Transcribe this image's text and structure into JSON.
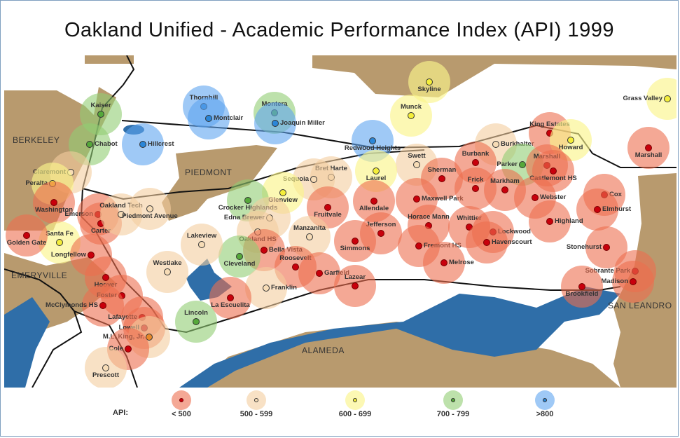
{
  "title": "Oakland Unified - Academic Performance Index  (API) 1999",
  "cities": [
    "BERKELEY",
    "PIEDMONT",
    "EMERYVILLE",
    "SAN LEANDRO",
    "ALAMEDA"
  ],
  "legend": {
    "label": "API:",
    "categories": [
      {
        "label": "< 500",
        "color": "#ec6e4e"
      },
      {
        "label": "500 - 599",
        "color": "#f4cd9e"
      },
      {
        "label": "600 - 699",
        "color": "#faf48c"
      },
      {
        "label": "700 - 799",
        "color": "#91cd73"
      },
      {
        "label": ">800",
        "color": "#5fa5f0"
      }
    ]
  },
  "schools": [
    {
      "name": "Kaiser",
      "api_category": "700 - 799"
    },
    {
      "name": "Chabot",
      "api_category": "700 - 799"
    },
    {
      "name": "Hillcrest",
      "api_category": ">800"
    },
    {
      "name": "Thornhill",
      "api_category": ">800"
    },
    {
      "name": "Montclair",
      "api_category": ">800"
    },
    {
      "name": "Montera",
      "api_category": "700 - 799"
    },
    {
      "name": "Joaquin Miller",
      "api_category": ">800"
    },
    {
      "name": "Skyline",
      "api_category": "600 - 699"
    },
    {
      "name": "Munck",
      "api_category": "600 - 699"
    },
    {
      "name": "Grass Valley",
      "api_category": "600 - 699"
    },
    {
      "name": "Redwood Heights",
      "api_category": ">800"
    },
    {
      "name": "Burkhalter",
      "api_category": "500 - 599"
    },
    {
      "name": "King Estates",
      "api_category": "< 500"
    },
    {
      "name": "Howard",
      "api_category": "600 - 699"
    },
    {
      "name": "Marshall",
      "api_category": "< 500"
    },
    {
      "name": "Parker",
      "api_category": "700 - 799"
    },
    {
      "name": "Marshall",
      "api_category": "< 500"
    },
    {
      "name": "Castlemont HS",
      "api_category": "< 500"
    },
    {
      "name": "Burbank",
      "api_category": "< 500"
    },
    {
      "name": "Swett",
      "api_category": "500 - 599"
    },
    {
      "name": "Laurel",
      "api_category": "600 - 699"
    },
    {
      "name": "Bret Harte",
      "api_category": "500 - 599"
    },
    {
      "name": "Sequoia",
      "api_category": "500 - 599"
    },
    {
      "name": "Glenview",
      "api_category": "600 - 699"
    },
    {
      "name": "Crocker Highlands",
      "api_category": "700 - 799"
    },
    {
      "name": "Edna Brewer",
      "api_category": "500 - 599"
    },
    {
      "name": "Oakland HS",
      "api_category": "500 - 599"
    },
    {
      "name": "Fruitvale",
      "api_category": "< 500"
    },
    {
      "name": "Allendale",
      "api_category": "< 500"
    },
    {
      "name": "Sherman",
      "api_category": "< 500"
    },
    {
      "name": "Maxwell Park",
      "api_category": "< 500"
    },
    {
      "name": "Frick",
      "api_category": "< 500"
    },
    {
      "name": "Markham",
      "api_category": "< 500"
    },
    {
      "name": "Webster",
      "api_category": "< 500"
    },
    {
      "name": "Cox",
      "api_category": "< 500"
    },
    {
      "name": "Elmhurst",
      "api_category": "< 500"
    },
    {
      "name": "Highland",
      "api_category": "< 500"
    },
    {
      "name": "Horace Mann",
      "api_category": "< 500"
    },
    {
      "name": "Jefferson",
      "api_category": "< 500"
    },
    {
      "name": "Simmons",
      "api_category": "< 500"
    },
    {
      "name": "Fremont HS",
      "api_category": "< 500"
    },
    {
      "name": "Whittier",
      "api_category": "< 500"
    },
    {
      "name": "Lockwood",
      "api_category": "< 500"
    },
    {
      "name": "Havenscourt",
      "api_category": "< 500"
    },
    {
      "name": "Melrose",
      "api_category": "< 500"
    },
    {
      "name": "Stonehurst",
      "api_category": "< 500"
    },
    {
      "name": "Sobrante Park",
      "api_category": "< 500"
    },
    {
      "name": "Madison",
      "api_category": "< 500"
    },
    {
      "name": "Brookfield",
      "api_category": "< 500"
    },
    {
      "name": "Manzanita",
      "api_category": "500 - 599"
    },
    {
      "name": "Bella Vista",
      "api_category": "< 500"
    },
    {
      "name": "Cleveland",
      "api_category": "700 - 799"
    },
    {
      "name": "Roosevelt",
      "api_category": "< 500"
    },
    {
      "name": "Garfield",
      "api_category": "< 500"
    },
    {
      "name": "Lazear",
      "api_category": "< 500"
    },
    {
      "name": "Franklin",
      "api_category": "500 - 599"
    },
    {
      "name": "La Escuelita",
      "api_category": "< 500"
    },
    {
      "name": "Lakeview",
      "api_category": "500 - 599"
    },
    {
      "name": "Westlake",
      "api_category": "500 - 599"
    },
    {
      "name": "Lincoln",
      "api_category": "700 - 799"
    },
    {
      "name": "Claremont",
      "api_category": "500 - 599"
    },
    {
      "name": "Peralta",
      "api_category": "600 - 699"
    },
    {
      "name": "Washington",
      "api_category": "< 500"
    },
    {
      "name": "Emerson",
      "api_category": "< 500"
    },
    {
      "name": "Carter",
      "api_category": "< 500"
    },
    {
      "name": "Oakland Tech",
      "api_category": "500 - 599"
    },
    {
      "name": "Piedmont Avenue",
      "api_category": "500 - 599"
    },
    {
      "name": "Santa Fe",
      "api_category": "600 - 699"
    },
    {
      "name": "Golden Gate",
      "api_category": "< 500"
    },
    {
      "name": "Longfellow",
      "api_category": "< 500"
    },
    {
      "name": "Hoover",
      "api_category": "< 500"
    },
    {
      "name": "Foster",
      "api_category": "< 500"
    },
    {
      "name": "McClymonds HS",
      "api_category": "< 500"
    },
    {
      "name": "Lafayette",
      "api_category": "< 500"
    },
    {
      "name": "Lowell",
      "api_category": "< 500"
    },
    {
      "name": "M.L. King, Jr.",
      "api_category": "500 - 599"
    },
    {
      "name": "Cole",
      "api_category": "< 500"
    },
    {
      "name": "Prescott",
      "api_category": "500 - 599"
    }
  ]
}
